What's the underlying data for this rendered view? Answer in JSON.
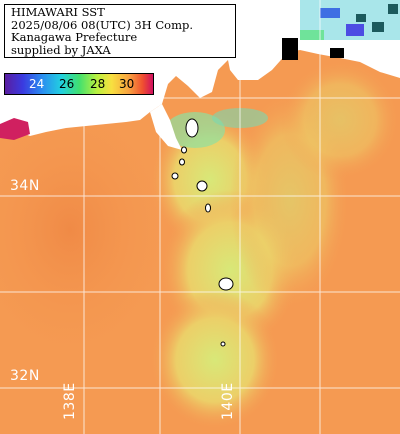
{
  "header": {
    "line1": "HIMAWARI SST",
    "line2": "2025/08/06 08(UTC) 3H Comp.",
    "line3": "Kanagawa Prefecture",
    "line4": "supplied by JAXA"
  },
  "colorbar": {
    "ticks": [
      "24",
      "26",
      "28",
      "30"
    ]
  },
  "graticule": {
    "lat_labels": [
      "34N",
      "32N"
    ],
    "lon_labels": [
      "138E",
      "140E"
    ]
  },
  "colors": {
    "sea_warm": "#f59a52",
    "sea_cool_plume": "#d9e070",
    "land": "#ffffff",
    "cloud_mask": "#000000",
    "grid": "#ffffff"
  }
}
